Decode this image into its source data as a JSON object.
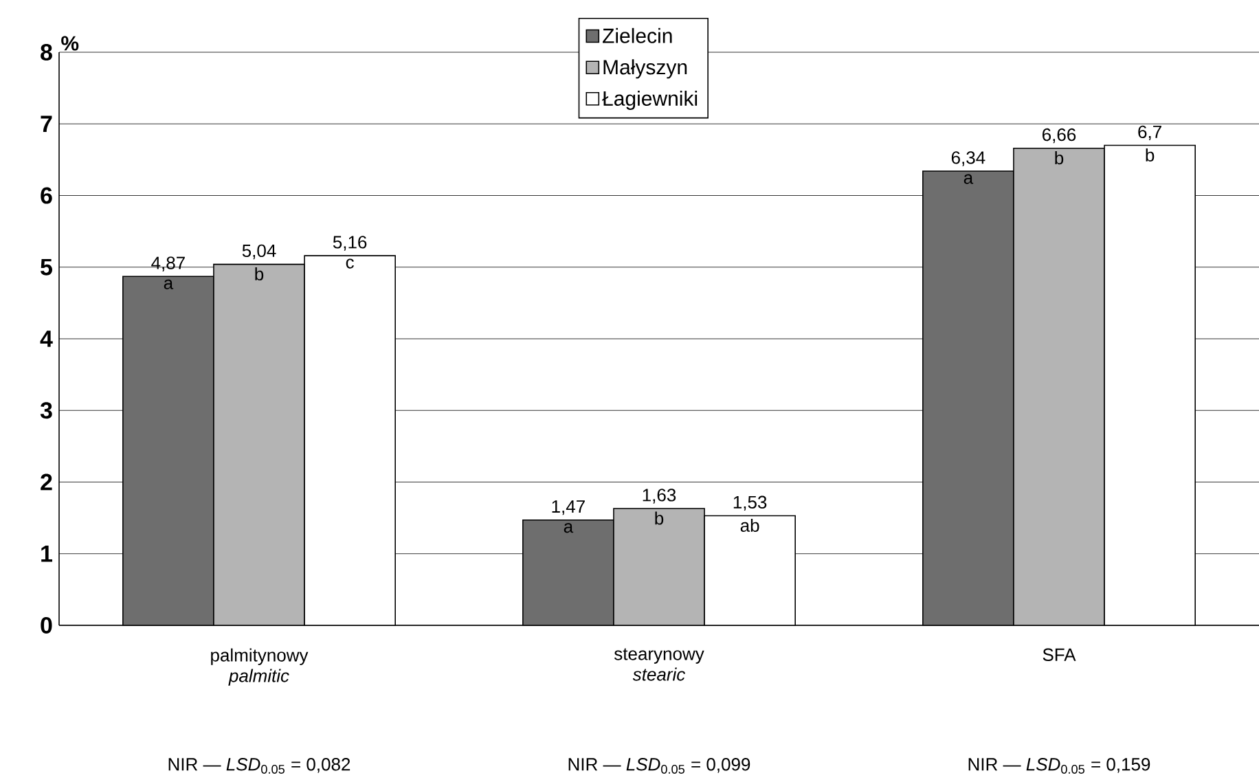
{
  "chart_data": {
    "type": "bar",
    "ylabel": "%",
    "categories": [
      "palmitynowy *palmitic*",
      "stearynowy *stearic*",
      "SFA"
    ],
    "series": [
      {
        "name": "Zielecin",
        "color": "#6e6e6e",
        "values": [
          4.87,
          1.47,
          6.34
        ],
        "value_labels": [
          "4,87",
          "1,47",
          "6,34"
        ]
      },
      {
        "name": "Małyszyn",
        "color": "#b4b4b4",
        "values": [
          5.04,
          1.63,
          6.66
        ],
        "value_labels": [
          "5,04",
          "1,63",
          "6,66"
        ]
      },
      {
        "name": "Łagiewniki",
        "color": "#ffffff",
        "values": [
          5.16,
          1.53,
          6.7
        ],
        "value_labels": [
          "5,16",
          "1,53",
          "6,7"
        ]
      }
    ],
    "ylim": [
      0,
      8
    ],
    "yticks": [
      0,
      1,
      2,
      3,
      4,
      5,
      6,
      7,
      8
    ],
    "grid": "y",
    "legend": "top",
    "annotations": [
      "NIR — *LSD*$_{0.05}$ = 0,082",
      "NIR — *LSD*$_{0.05}$ = 0,099",
      "NIR — *LSD*$_{0.05}$ = 0,159",
      "a",
      "b",
      "c",
      "a",
      "b",
      "ab",
      "a",
      "b",
      "b"
    ]
  }
}
